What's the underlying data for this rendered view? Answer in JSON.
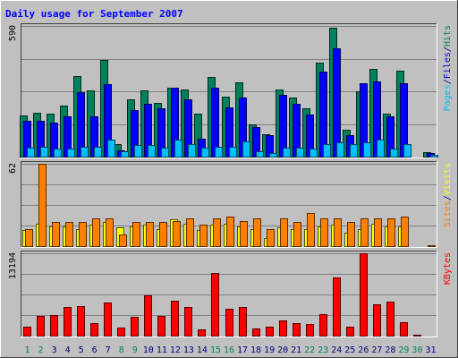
{
  "chart_data": {
    "type": "bar",
    "title": "Daily usage for September 2007",
    "colors": {
      "hits": "#00805c",
      "files": "#0000ff",
      "pages": "#00c0ff",
      "visits": "#ffff00",
      "sites": "#ff8000",
      "kbytes": "#ff0000",
      "weekend_day": "#00805c",
      "weekday": "#000080",
      "title": "#0000ff",
      "background": "#c0c0c0",
      "plot_background": "#c0c0c0",
      "grid": "#808080"
    },
    "categories": [
      "1",
      "2",
      "3",
      "4",
      "5",
      "6",
      "7",
      "8",
      "9",
      "10",
      "11",
      "12",
      "13",
      "14",
      "15",
      "16",
      "17",
      "18",
      "19",
      "20",
      "21",
      "22",
      "23",
      "24",
      "25",
      "26",
      "27",
      "28",
      "29",
      "30",
      "31"
    ],
    "weekend_days": [
      "1",
      "2",
      "8",
      "9",
      "15",
      "16",
      "22",
      "23",
      "29",
      "30"
    ],
    "panels": [
      {
        "id": "hits-files-pages",
        "ymax_label": "590",
        "ymax": 590,
        "legend": [
          {
            "key": "pages",
            "label": "Pages",
            "color": "#00c0ff"
          },
          {
            "key": "sep1",
            "label": "/",
            "color": "#000080"
          },
          {
            "key": "files",
            "label": "Files",
            "color": "#0000ff"
          },
          {
            "key": "sep2",
            "label": "/",
            "color": "#000080"
          },
          {
            "key": "hits",
            "label": "Hits",
            "color": "#00805c"
          }
        ],
        "series": [
          {
            "name": "Hits",
            "color": "#00805c",
            "values": [
              184,
              198,
              194,
              230,
              364,
              300,
              437,
              58,
              258,
              300,
              244,
              311,
              303,
              195,
              361,
              271,
              336,
              145,
              100,
              302,
              266,
              218,
              423,
              580,
              123,
              293,
              397,
              195,
              389,
              0,
              20
            ]
          },
          {
            "name": "Files",
            "color": "#0000ff",
            "values": [
              160,
              160,
              155,
              180,
              290,
              180,
              326,
              30,
              210,
              240,
              220,
              310,
              260,
              80,
              310,
              221,
              265,
              135,
              95,
              280,
              240,
              190,
              385,
              490,
              95,
              330,
              340,
              180,
              330,
              0,
              15
            ]
          },
          {
            "name": "Pages",
            "color": "#00c0ff",
            "values": [
              40,
              45,
              35,
              38,
              45,
              45,
              75,
              25,
              52,
              52,
              42,
              75,
              57,
              42,
              45,
              45,
              70,
              25,
              18,
              42,
              42,
              35,
              55,
              66,
              55,
              66,
              75,
              35,
              55,
              0,
              10
            ]
          }
        ]
      },
      {
        "id": "visits-sites",
        "ymax_label": "62",
        "ymax": 62,
        "legend": [
          {
            "key": "sites",
            "label": "Sites",
            "color": "#ff8000"
          },
          {
            "key": "sep1",
            "label": "/",
            "color": "#000080"
          },
          {
            "key": "visits",
            "label": "Visits",
            "color": "#ffff00"
          }
        ],
        "series": [
          {
            "name": "Visits",
            "color": "#ffff00",
            "values": [
              12,
              17,
              15,
              15,
              13,
              16,
              18,
              14,
              15,
              16,
              13,
              20,
              17,
              12,
              16,
              17,
              15,
              13,
              6,
              14,
              13,
              13,
              15,
              16,
              10,
              13,
              17,
              15,
              15,
              0,
              0
            ]
          },
          {
            "name": "Sites",
            "color": "#ff8000",
            "values": [
              13,
              62,
              18,
              18,
              18,
              21,
              21,
              9,
              18,
              18,
              18,
              19,
              21,
              16,
              21,
              22,
              19,
              21,
              13,
              21,
              18,
              25,
              21,
              21,
              18,
              21,
              21,
              21,
              22,
              0,
              1
            ]
          }
        ]
      },
      {
        "id": "kbytes",
        "ymax_label": "13194",
        "ymax": 13194,
        "legend": [
          {
            "key": "kbytes",
            "label": "KBytes",
            "color": "#ff0000"
          }
        ],
        "series": [
          {
            "name": "KBytes",
            "color": "#ff0000",
            "values": [
              1400,
              3200,
              3250,
              4550,
              4750,
              1950,
              5350,
              1300,
              2950,
              6400,
              3150,
              5650,
              4600,
              940,
              10000,
              4300,
              4650,
              1200,
              1500,
              2450,
              2040,
              1900,
              3500,
              9350,
              1450,
              13194,
              5000,
              5400,
              2100,
              200,
              0
            ]
          }
        ]
      }
    ]
  }
}
